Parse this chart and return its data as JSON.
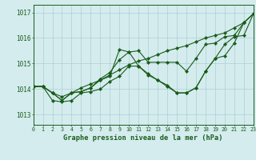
{
  "title": "Graphe pression niveau de la mer (hPa)",
  "ylim": [
    1012.6,
    1017.3
  ],
  "yticks": [
    1013,
    1014,
    1015,
    1016,
    1017
  ],
  "xlim": [
    0,
    23
  ],
  "bg_color": "#d4ecee",
  "grid_color": "#aecfd2",
  "line_color": "#1a5c1a",
  "series": [
    [
      1014.1,
      1014.1,
      1013.85,
      1013.55,
      1013.85,
      1013.9,
      1014.05,
      1014.4,
      1014.65,
      1015.15,
      1015.45,
      1015.5,
      1015.05,
      1015.05,
      1015.05,
      1015.05,
      1014.7,
      1015.2,
      1015.75,
      1015.8,
      1016.05,
      1016.1,
      1016.6,
      1016.95
    ],
    [
      1014.1,
      1014.1,
      1013.85,
      1013.55,
      1013.85,
      1013.9,
      1014.05,
      1014.35,
      1014.5,
      1015.55,
      1015.45,
      1014.9,
      1014.6,
      1014.35,
      1014.15,
      1013.85,
      1013.85,
      1014.05,
      1014.7,
      1015.2,
      1015.75,
      1016.05,
      1016.1,
      1016.95
    ],
    [
      1014.1,
      1014.1,
      1013.55,
      1013.5,
      1013.55,
      1013.85,
      1013.9,
      1014.0,
      1014.3,
      1014.5,
      1014.9,
      1014.9,
      1014.55,
      1014.35,
      1014.1,
      1013.85,
      1013.85,
      1014.05,
      1014.7,
      1015.2,
      1015.3,
      1015.8,
      1016.6,
      1016.95
    ],
    [
      1014.1,
      1014.1,
      1013.85,
      1013.7,
      1013.85,
      1014.05,
      1014.2,
      1014.35,
      1014.55,
      1014.75,
      1014.95,
      1015.1,
      1015.2,
      1015.35,
      1015.5,
      1015.6,
      1015.7,
      1015.85,
      1016.0,
      1016.1,
      1016.2,
      1016.4,
      1016.6,
      1016.95
    ]
  ]
}
